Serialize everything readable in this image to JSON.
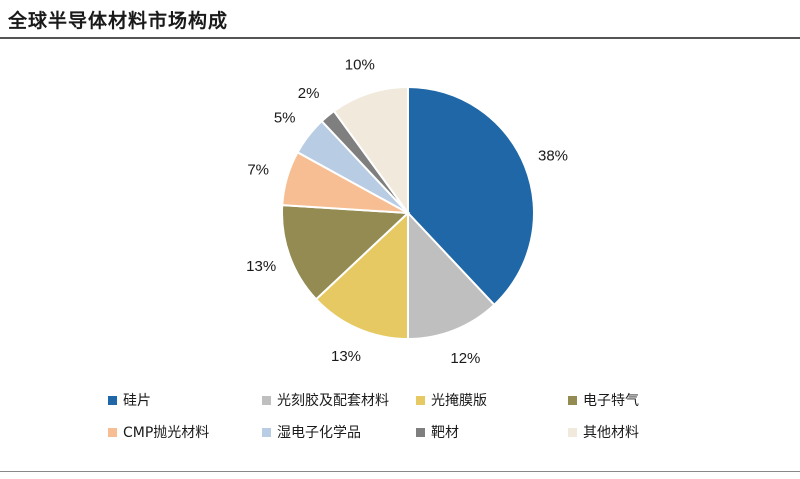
{
  "header": {
    "title": "全球半导体材料市场构成"
  },
  "chart_data": {
    "type": "pie",
    "title": "全球半导体材料市场构成",
    "labels": [
      "硅片",
      "光刻胶及配套材料",
      "光掩膜版",
      "电子特气",
      "CMP抛光材料",
      "湿电子化学品",
      "靶材",
      "其他材料"
    ],
    "values": [
      38,
      12,
      13,
      13,
      7,
      5,
      2,
      10
    ],
    "value_labels": [
      "38%",
      "12%",
      "13%",
      "13%",
      "7%",
      "5%",
      "2%",
      "10%"
    ],
    "colors": [
      "#1f67a6",
      "#bfbfbf",
      "#e6c962",
      "#948b52",
      "#f6be92",
      "#b8cce4",
      "#7f7f7f",
      "#f1e9dc"
    ],
    "start": "12 o'clock, clockwise",
    "legend_position": "bottom"
  }
}
